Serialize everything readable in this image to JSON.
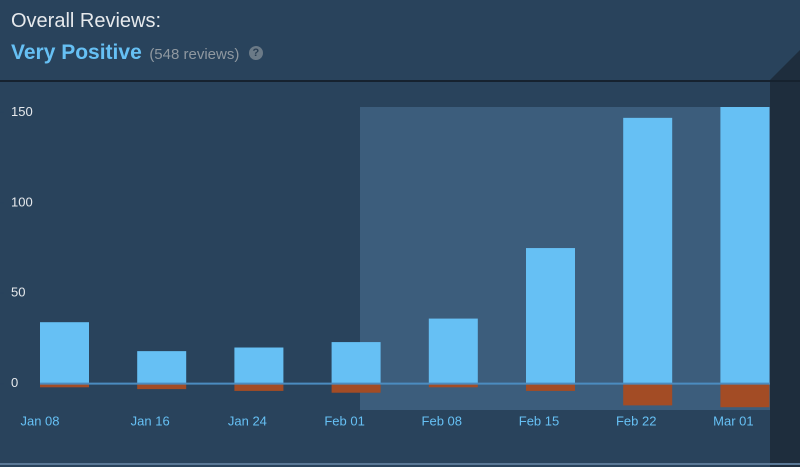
{
  "header": {
    "title": "Overall Reviews:",
    "summary": "Very Positive",
    "count": "(548 reviews)",
    "help": "?"
  },
  "chart_data": {
    "type": "bar",
    "categories": [
      "Jan 08",
      "Jan 16",
      "Jan 24",
      "Feb 01",
      "Feb 08",
      "Feb 15",
      "Feb 22",
      "Mar 01"
    ],
    "series": [
      {
        "color": "#66c0f4",
        "values": [
          34,
          18,
          20,
          23,
          36,
          75,
          147,
          153
        ]
      },
      {
        "color": "#a34c25",
        "values": [
          -2,
          -3,
          -4,
          -5,
          -2,
          -4,
          -12,
          -13
        ]
      }
    ],
    "ylim": [
      -14,
      153
    ],
    "yticks": [
      0,
      50,
      100,
      150
    ]
  }
}
